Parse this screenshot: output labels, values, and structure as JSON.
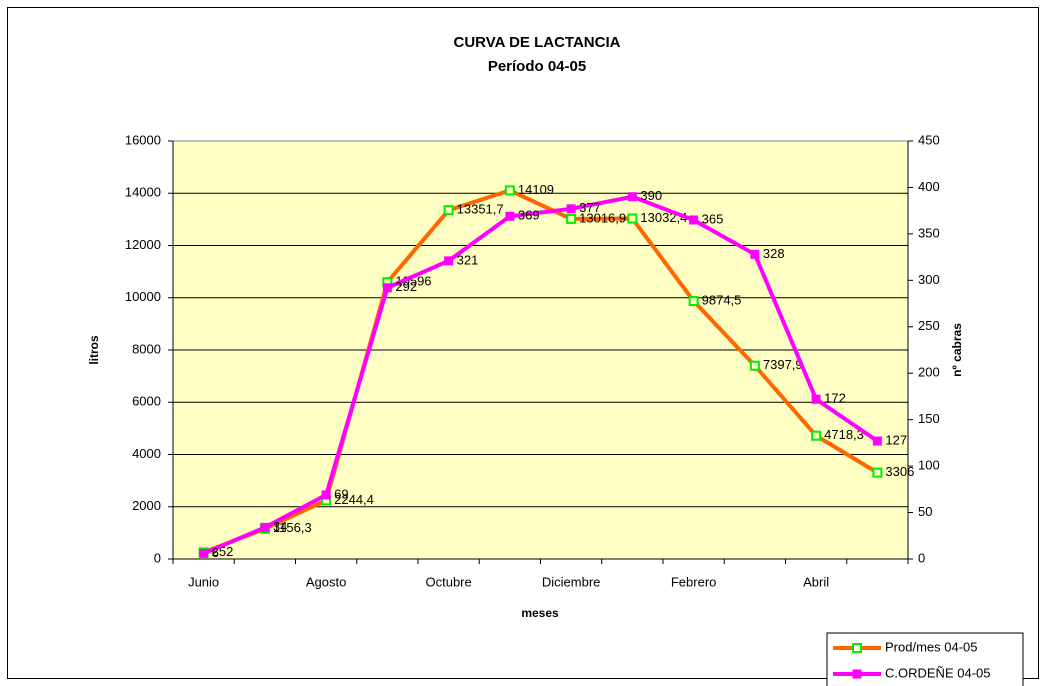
{
  "chart_data": {
    "type": "line",
    "title": "CURVA DE LACTANCIA",
    "subtitle": "Período 04-05",
    "x_label": "meses",
    "y_label": "litros",
    "y2_label": "nº cabras",
    "categories": [
      "Junio",
      null,
      "Agosto",
      null,
      "Octubre",
      null,
      "Diciembre",
      null,
      "Febrero",
      null,
      "Abril",
      null
    ],
    "series": [
      {
        "name": "Prod/mes 04-05",
        "color": "#ff6600",
        "marker_color": "#00ee00",
        "values": [
          252,
          1156.3,
          2244.4,
          10596,
          13351.7,
          14109,
          13016.9,
          13032.4,
          9874.5,
          7397.9,
          4718.3,
          3306
        ],
        "value_labels": [
          "252",
          "1156,3",
          "2244,4",
          "10596",
          "13351,7",
          "14109",
          "13016,9",
          "13032,4",
          "9874,5",
          "7397,9",
          "4718,3",
          "3306"
        ]
      },
      {
        "name": "C.ORDEÑE 04-05",
        "color": "#ff00ff",
        "marker_color": "#ff00ff",
        "axis": "y2",
        "values": [
          6,
          34,
          69,
          292,
          321,
          369,
          377,
          390,
          365,
          328,
          172,
          127
        ]
      }
    ],
    "ylim": [
      0,
      16000
    ],
    "yticks": [
      0,
      2000,
      4000,
      6000,
      8000,
      10000,
      12000,
      14000,
      16000
    ],
    "y2lim": [
      0,
      450
    ],
    "y2ticks": [
      0,
      50,
      100,
      150,
      200,
      250,
      300,
      350,
      400,
      450
    ],
    "grid": true,
    "legend": "bottom-right"
  }
}
